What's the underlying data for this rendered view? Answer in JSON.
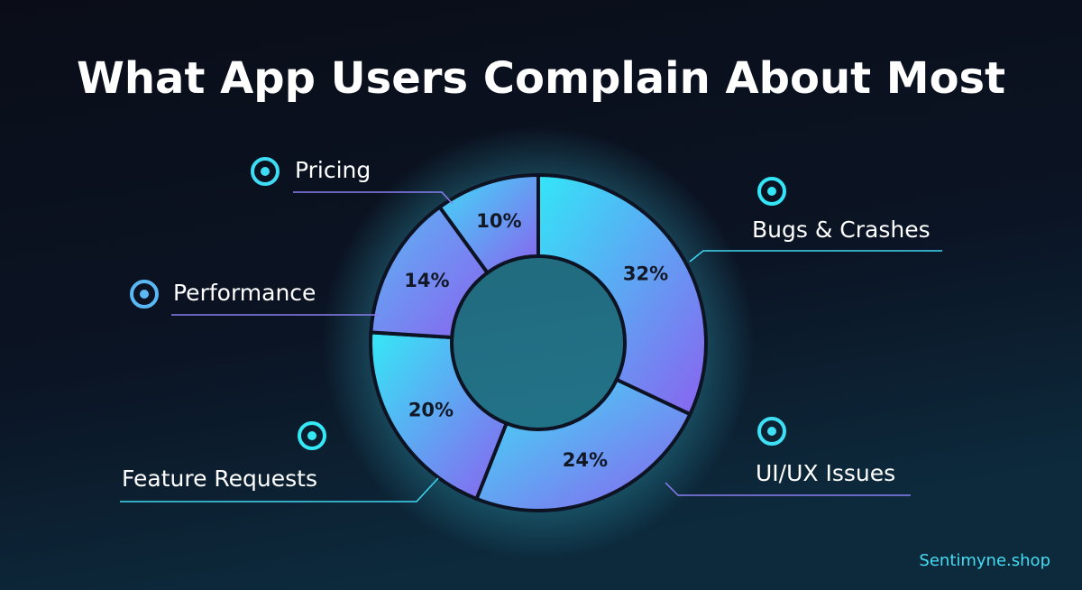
{
  "chart_data": {
    "type": "pie",
    "donut": true,
    "title": "What App Users Complain About Most",
    "categories": [
      "Bugs & Crashes",
      "UI/UX Issues",
      "Feature Requests",
      "Performance",
      "Pricing"
    ],
    "values": [
      32,
      24,
      20,
      14,
      10
    ],
    "value_labels": [
      "32%",
      "24%",
      "20%",
      "14%",
      "10%"
    ],
    "colors": [
      "#33e6f7",
      "#3fe0f5",
      "#35e8f6",
      "#5ab8f4",
      "#3fdcf6"
    ],
    "gradient_to": "#8a62ef",
    "footer": "Sentimyne.shop"
  }
}
